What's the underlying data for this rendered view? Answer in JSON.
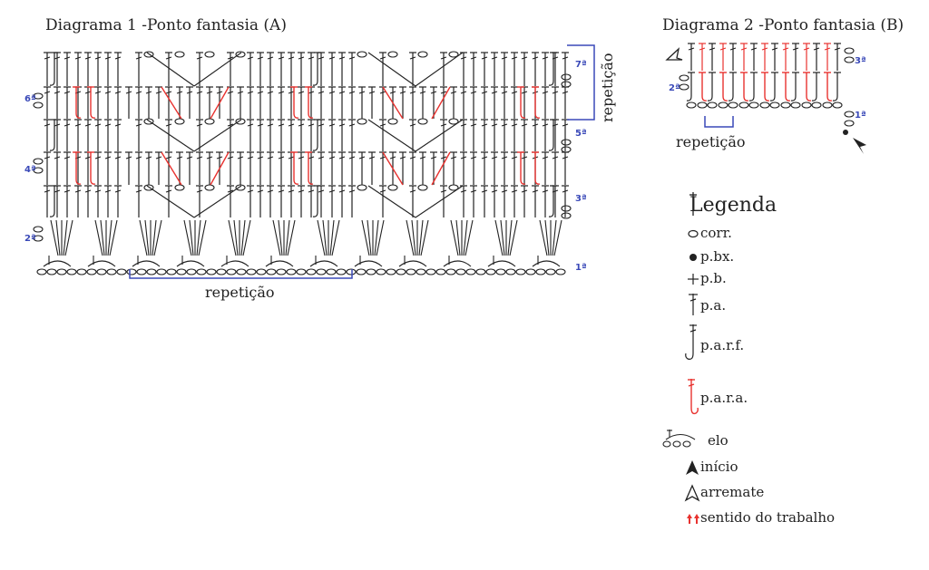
{
  "diagram1": {
    "title": "Diagrama 1 -Ponto fantasia (A)",
    "repeat_label_bottom": "repetição",
    "repeat_label_side": "repetição",
    "rows": [
      "1ª",
      "2ª",
      "3ª",
      "4ª",
      "5ª",
      "6ª",
      "7ª"
    ]
  },
  "diagram2": {
    "title": "Diagrama 2 -Ponto fantasia (B)",
    "repeat_label": "repetição",
    "rows": [
      "1ª",
      "2ª",
      "3ª"
    ]
  },
  "legend": {
    "title": "Legenda",
    "items": [
      {
        "icon": "chain-icon",
        "label": "corr."
      },
      {
        "icon": "slip-stitch-icon",
        "label": "p.bx."
      },
      {
        "icon": "single-crochet-icon",
        "label": "p.b."
      },
      {
        "icon": "double-crochet-icon",
        "label": "p.a."
      },
      {
        "icon": "front-post-double-crochet-icon",
        "label": "p.a.r.f."
      },
      {
        "icon": "back-post-double-crochet-icon",
        "label": "p.a.r.a."
      },
      {
        "icon": "link-icon",
        "label": "elo"
      },
      {
        "icon": "start-arrow-icon",
        "label": "início"
      },
      {
        "icon": "finish-arrow-icon",
        "label": "arremate"
      },
      {
        "icon": "direction-arrows-icon",
        "label": "sentido do trabalho"
      }
    ]
  },
  "colors": {
    "ink": "#222222",
    "red": "#e8322f",
    "blue": "#3a49b8"
  }
}
